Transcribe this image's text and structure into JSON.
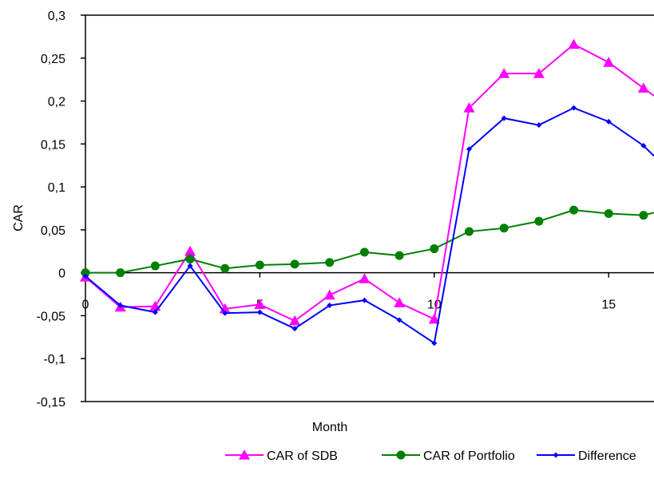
{
  "chart_data": {
    "type": "line",
    "title": "",
    "xlabel": "Month",
    "ylabel": "CAR",
    "xlim": [
      0,
      16.3
    ],
    "ylim": [
      -0.15,
      0.3
    ],
    "x_ticks": [
      "0",
      "5",
      "10",
      "15"
    ],
    "y_ticks": [
      "0,3",
      "0,25",
      "0,2",
      "0,15",
      "0,1",
      "0,05",
      "0",
      "-0,05",
      "-0,1",
      "-0,15"
    ],
    "grid": false,
    "legend_position": "bottom-right",
    "series": [
      {
        "name": "CAR of SDB",
        "color": "#ff00ff",
        "marker": "triangle",
        "x": [
          0,
          1,
          2,
          3,
          4,
          5,
          6,
          7,
          8,
          9,
          10,
          11,
          12,
          13,
          14,
          15,
          16,
          16.3
        ],
        "y": [
          -0.005,
          -0.04,
          -0.039,
          0.025,
          -0.042,
          -0.037,
          -0.056,
          -0.026,
          -0.007,
          -0.035,
          -0.054,
          0.192,
          0.232,
          0.232,
          0.266,
          0.245,
          0.215,
          0.206
        ]
      },
      {
        "name": "CAR of Portfolio",
        "color": "#008000",
        "marker": "circle",
        "x": [
          0,
          1,
          2,
          3,
          4,
          5,
          6,
          7,
          8,
          9,
          10,
          11,
          12,
          13,
          14,
          15,
          16,
          16.3
        ],
        "y": [
          0.0,
          0.0,
          0.008,
          0.016,
          0.005,
          0.009,
          0.01,
          0.012,
          0.024,
          0.02,
          0.028,
          0.048,
          0.052,
          0.06,
          0.073,
          0.069,
          0.067,
          0.07
        ]
      },
      {
        "name": "Difference",
        "color": "#0000ff",
        "marker": "diamond",
        "x": [
          0,
          1,
          2,
          3,
          4,
          5,
          6,
          7,
          8,
          9,
          10,
          11,
          12,
          13,
          14,
          15,
          16,
          16.3
        ],
        "y": [
          -0.004,
          -0.038,
          -0.046,
          0.008,
          -0.047,
          -0.046,
          -0.065,
          -0.038,
          -0.032,
          -0.055,
          -0.082,
          0.144,
          0.18,
          0.172,
          0.192,
          0.176,
          0.148,
          0.136
        ]
      }
    ]
  }
}
